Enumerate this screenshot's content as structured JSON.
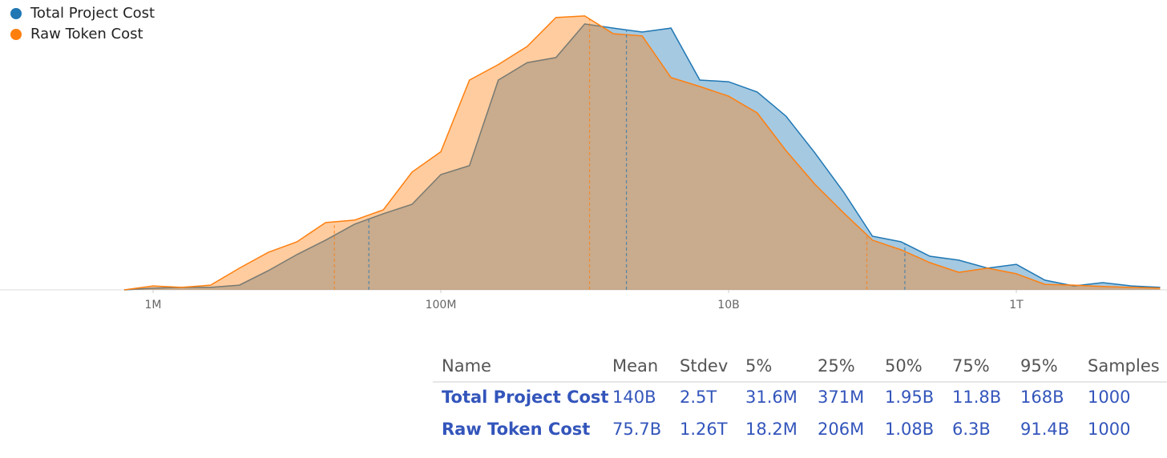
{
  "chart_data": {
    "type": "area",
    "xscale": "log",
    "xlim": [
      100000.0,
      10000000000000.0
    ],
    "xticks": [
      {
        "value": 1000000.0,
        "label": "1M"
      },
      {
        "value": 100000000.0,
        "label": "100M"
      },
      {
        "value": 10000000000.0,
        "label": "10B"
      },
      {
        "value": 1000000000000.0,
        "label": "1T"
      }
    ],
    "ylim": [
      0,
      100
    ],
    "legend": "top-left",
    "x": [
      631000.0,
      1000000.0,
      1580000.0,
      2510000.0,
      3980000.0,
      6310000.0,
      10000000.0,
      15800000.0,
      25100000.0,
      39800000.0,
      63100000.0,
      100000000.0,
      158000000.0,
      251000000.0,
      398000000.0,
      631000000.0,
      1000000000.0,
      1580000000.0,
      2510000000.0,
      3980000000.0,
      6310000000.0,
      10000000000.0,
      15800000000.0,
      25100000000.0,
      39800000000.0,
      63100000000.0,
      100000000000.0,
      158000000000.0,
      251000000000.0,
      398000000000.0,
      631000000000.0,
      1000000000000.0,
      1580000000000.0,
      2510000000000.0,
      3980000000000.0,
      6310000000000.0,
      10000000000000.0
    ],
    "series": [
      {
        "name": "Total Project Cost",
        "color": "#1f77b4",
        "values": [
          0,
          0.6,
          0.9,
          0.9,
          1.7,
          6.9,
          12.7,
          17.9,
          23.6,
          27.4,
          30.8,
          41.5,
          44.7,
          75.5,
          81.8,
          83.6,
          95.7,
          94.2,
          92.8,
          94.2,
          75.5,
          74.9,
          71.2,
          62.5,
          49.3,
          35.2,
          19.3,
          17.3,
          12.1,
          10.7,
          7.8,
          9.2,
          3.5,
          1.4,
          2.6,
          1.4,
          0.9
        ],
        "markers": [
          31600000.0,
          1950000000.0,
          168000000000.0
        ]
      },
      {
        "name": "Raw Token Cost",
        "color": "#ff7f0e",
        "values": [
          0,
          1.4,
          0.9,
          1.7,
          7.8,
          13.5,
          17.3,
          24.2,
          25.1,
          28.8,
          42.4,
          49.7,
          75.5,
          81.1,
          87.6,
          98.0,
          98.6,
          92.2,
          91.4,
          76.4,
          73.2,
          69.7,
          63.7,
          50.1,
          38.0,
          27.7,
          17.9,
          14.4,
          9.8,
          6.3,
          7.8,
          5.8,
          2.0,
          1.7,
          1.2,
          0.9,
          0.6
        ],
        "markers": [
          18200000.0,
          1080000000.0,
          91400000000.0
        ]
      }
    ]
  },
  "table": {
    "columns": [
      "Name",
      "Mean",
      "Stdev",
      "5%",
      "25%",
      "50%",
      "75%",
      "95%",
      "Samples"
    ],
    "rows": [
      [
        "Total Project Cost",
        "140B",
        "2.5T",
        "31.6M",
        "371M",
        "1.95B",
        "11.8B",
        "168B",
        "1000"
      ],
      [
        "Raw Token Cost",
        "75.7B",
        "1.26T",
        "18.2M",
        "206M",
        "1.08B",
        "6.3B",
        "91.4B",
        "1000"
      ]
    ]
  }
}
